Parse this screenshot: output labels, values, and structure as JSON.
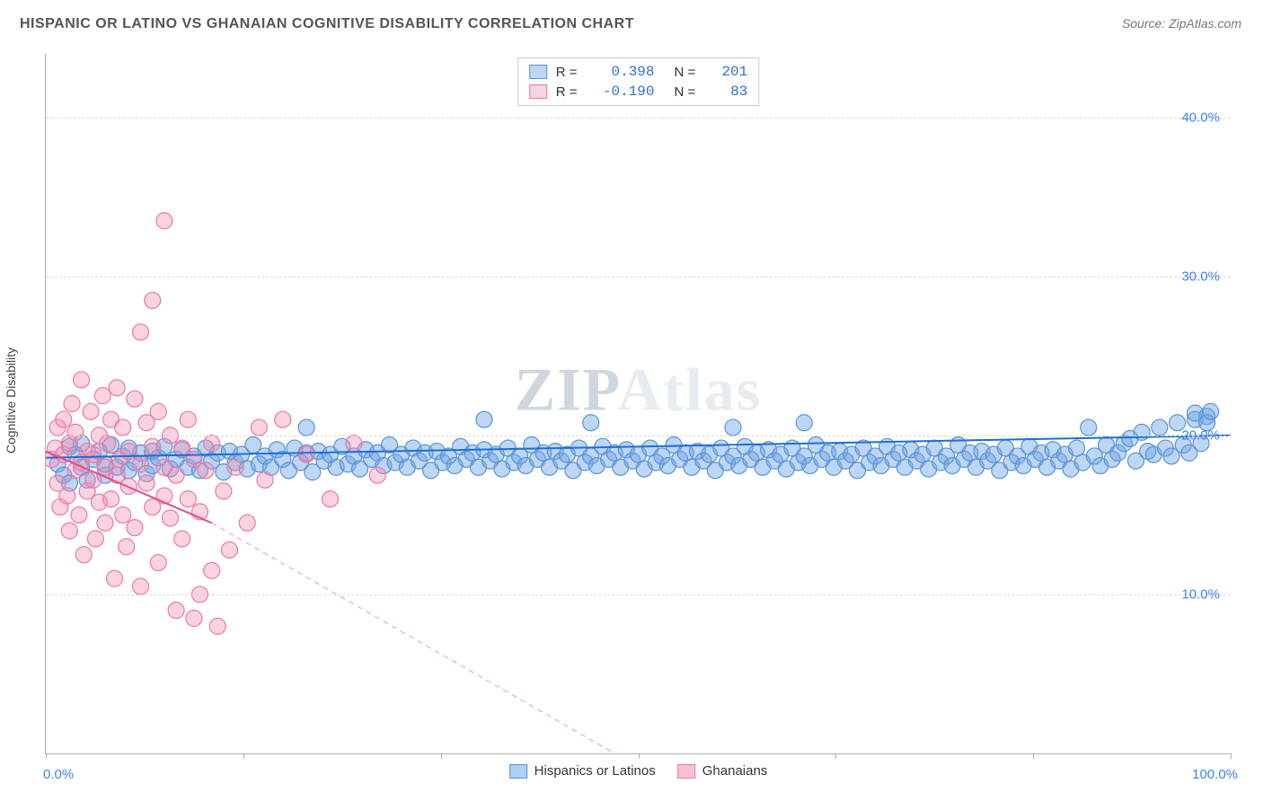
{
  "title": "HISPANIC OR LATINO VS GHANAIAN COGNITIVE DISABILITY CORRELATION CHART",
  "source_label": "Source:",
  "source_name": "ZipAtlas.com",
  "watermark": "ZIPAtlas",
  "chart": {
    "type": "scatter",
    "y_label": "Cognitive Disability",
    "xlim": [
      0,
      100
    ],
    "ylim": [
      0,
      44
    ],
    "y_ticks": [
      10,
      20,
      30,
      40
    ],
    "y_tick_labels": [
      "10.0%",
      "20.0%",
      "30.0%",
      "40.0%"
    ],
    "x_tick_positions": [
      0,
      16.67,
      33.33,
      50,
      66.67,
      83.33,
      100
    ],
    "x_min_label": "0.0%",
    "x_max_label": "100.0%",
    "background_color": "#ffffff",
    "grid_color": "#d9d9d9",
    "axis_color": "#b0b0b0",
    "tick_label_color": "#3b82f6",
    "marker_radius": 9,
    "marker_stroke_width": 1.2,
    "series": [
      {
        "name": "Hispanics or Latinos",
        "fill": "rgba(108,165,231,0.45)",
        "stroke": "#5a93d4",
        "r_value": "0.398",
        "n_value": "201",
        "trend": {
          "x1": 0,
          "y1": 18.6,
          "x2": 100,
          "y2": 20.0,
          "color": "#1d6fd6",
          "width": 2
        },
        "points": [
          [
            1,
            18.2
          ],
          [
            1.5,
            17.5
          ],
          [
            2,
            19.3
          ],
          [
            2,
            17.0
          ],
          [
            2.5,
            18.8
          ],
          [
            3,
            18.0
          ],
          [
            3,
            19.5
          ],
          [
            3.5,
            17.2
          ],
          [
            4,
            18.5
          ],
          [
            4.5,
            19.0
          ],
          [
            5,
            18.2
          ],
          [
            5,
            17.5
          ],
          [
            5.5,
            19.4
          ],
          [
            6,
            18.0
          ],
          [
            6.5,
            18.7
          ],
          [
            7,
            17.8
          ],
          [
            7,
            19.2
          ],
          [
            7.5,
            18.3
          ],
          [
            8,
            18.9
          ],
          [
            8.5,
            17.6
          ],
          [
            9,
            19.0
          ],
          [
            9,
            18.1
          ],
          [
            9.5,
            18.6
          ],
          [
            10,
            19.3
          ],
          [
            10.5,
            17.9
          ],
          [
            11,
            18.5
          ],
          [
            11.5,
            19.1
          ],
          [
            12,
            18.0
          ],
          [
            12.5,
            18.7
          ],
          [
            13,
            17.8
          ],
          [
            13.5,
            19.2
          ],
          [
            14,
            18.4
          ],
          [
            14.5,
            18.9
          ],
          [
            15,
            17.7
          ],
          [
            15.5,
            19.0
          ],
          [
            16,
            18.3
          ],
          [
            16.5,
            18.8
          ],
          [
            17,
            17.9
          ],
          [
            17.5,
            19.4
          ],
          [
            18,
            18.2
          ],
          [
            18.5,
            18.7
          ],
          [
            19,
            18.0
          ],
          [
            19.5,
            19.1
          ],
          [
            20,
            18.5
          ],
          [
            20.5,
            17.8
          ],
          [
            21,
            19.2
          ],
          [
            21.5,
            18.3
          ],
          [
            22,
            18.9
          ],
          [
            22,
            20.5
          ],
          [
            22.5,
            17.7
          ],
          [
            23,
            19.0
          ],
          [
            23.5,
            18.4
          ],
          [
            24,
            18.8
          ],
          [
            24.5,
            18.0
          ],
          [
            25,
            19.3
          ],
          [
            25.5,
            18.2
          ],
          [
            26,
            18.7
          ],
          [
            26.5,
            17.9
          ],
          [
            27,
            19.1
          ],
          [
            27.5,
            18.5
          ],
          [
            28,
            18.9
          ],
          [
            28.5,
            18.1
          ],
          [
            29,
            19.4
          ],
          [
            29.5,
            18.3
          ],
          [
            30,
            18.8
          ],
          [
            30.5,
            18.0
          ],
          [
            31,
            19.2
          ],
          [
            31.5,
            18.4
          ],
          [
            32,
            18.9
          ],
          [
            32.5,
            17.8
          ],
          [
            33,
            19.0
          ],
          [
            33.5,
            18.3
          ],
          [
            34,
            18.7
          ],
          [
            34.5,
            18.1
          ],
          [
            35,
            19.3
          ],
          [
            35.5,
            18.5
          ],
          [
            36,
            18.9
          ],
          [
            36.5,
            18.0
          ],
          [
            37,
            19.1
          ],
          [
            37,
            21.0
          ],
          [
            37.5,
            18.4
          ],
          [
            38,
            18.8
          ],
          [
            38.5,
            17.9
          ],
          [
            39,
            19.2
          ],
          [
            39.5,
            18.3
          ],
          [
            40,
            18.7
          ],
          [
            40.5,
            18.1
          ],
          [
            41,
            19.4
          ],
          [
            41.5,
            18.5
          ],
          [
            42,
            18.9
          ],
          [
            42.5,
            18.0
          ],
          [
            43,
            19.0
          ],
          [
            43.5,
            18.4
          ],
          [
            44,
            18.8
          ],
          [
            44.5,
            17.8
          ],
          [
            45,
            19.2
          ],
          [
            45.5,
            18.3
          ],
          [
            46,
            18.7
          ],
          [
            46,
            20.8
          ],
          [
            46.5,
            18.1
          ],
          [
            47,
            19.3
          ],
          [
            47.5,
            18.5
          ],
          [
            48,
            18.9
          ],
          [
            48.5,
            18.0
          ],
          [
            49,
            19.1
          ],
          [
            49.5,
            18.4
          ],
          [
            50,
            18.8
          ],
          [
            50.5,
            17.9
          ],
          [
            51,
            19.2
          ],
          [
            51.5,
            18.3
          ],
          [
            52,
            18.7
          ],
          [
            52.5,
            18.1
          ],
          [
            53,
            19.4
          ],
          [
            53.5,
            18.5
          ],
          [
            54,
            18.9
          ],
          [
            54.5,
            18.0
          ],
          [
            55,
            19.0
          ],
          [
            55.5,
            18.4
          ],
          [
            56,
            18.8
          ],
          [
            56.5,
            17.8
          ],
          [
            57,
            19.2
          ],
          [
            57.5,
            18.3
          ],
          [
            58,
            18.7
          ],
          [
            58,
            20.5
          ],
          [
            58.5,
            18.1
          ],
          [
            59,
            19.3
          ],
          [
            59.5,
            18.5
          ],
          [
            60,
            18.9
          ],
          [
            60.5,
            18.0
          ],
          [
            61,
            19.1
          ],
          [
            61.5,
            18.4
          ],
          [
            62,
            18.8
          ],
          [
            62.5,
            17.9
          ],
          [
            63,
            19.2
          ],
          [
            63.5,
            18.3
          ],
          [
            64,
            18.7
          ],
          [
            64,
            20.8
          ],
          [
            64.5,
            18.1
          ],
          [
            65,
            19.4
          ],
          [
            65.5,
            18.5
          ],
          [
            66,
            18.9
          ],
          [
            66.5,
            18.0
          ],
          [
            67,
            19.0
          ],
          [
            67.5,
            18.4
          ],
          [
            68,
            18.8
          ],
          [
            68.5,
            17.8
          ],
          [
            69,
            19.2
          ],
          [
            69.5,
            18.3
          ],
          [
            70,
            18.7
          ],
          [
            70.5,
            18.1
          ],
          [
            71,
            19.3
          ],
          [
            71.5,
            18.5
          ],
          [
            72,
            18.9
          ],
          [
            72.5,
            18.0
          ],
          [
            73,
            19.1
          ],
          [
            73.5,
            18.4
          ],
          [
            74,
            18.8
          ],
          [
            74.5,
            17.9
          ],
          [
            75,
            19.2
          ],
          [
            75.5,
            18.3
          ],
          [
            76,
            18.7
          ],
          [
            76.5,
            18.1
          ],
          [
            77,
            19.4
          ],
          [
            77.5,
            18.5
          ],
          [
            78,
            18.9
          ],
          [
            78.5,
            18.0
          ],
          [
            79,
            19.0
          ],
          [
            79.5,
            18.4
          ],
          [
            80,
            18.8
          ],
          [
            80.5,
            17.8
          ],
          [
            81,
            19.2
          ],
          [
            81.5,
            18.3
          ],
          [
            82,
            18.7
          ],
          [
            82.5,
            18.1
          ],
          [
            83,
            19.3
          ],
          [
            83.5,
            18.5
          ],
          [
            84,
            18.9
          ],
          [
            84.5,
            18.0
          ],
          [
            85,
            19.1
          ],
          [
            85.5,
            18.4
          ],
          [
            86,
            18.8
          ],
          [
            86.5,
            17.9
          ],
          [
            87,
            19.2
          ],
          [
            87.5,
            18.3
          ],
          [
            88,
            20.5
          ],
          [
            88.5,
            18.7
          ],
          [
            89,
            18.1
          ],
          [
            89.5,
            19.4
          ],
          [
            90,
            18.5
          ],
          [
            90.5,
            18.9
          ],
          [
            91,
            19.5
          ],
          [
            91.5,
            19.8
          ],
          [
            92,
            18.4
          ],
          [
            92.5,
            20.2
          ],
          [
            93,
            19.0
          ],
          [
            93.5,
            18.8
          ],
          [
            94,
            20.5
          ],
          [
            94.5,
            19.2
          ],
          [
            95,
            18.7
          ],
          [
            95.5,
            20.8
          ],
          [
            96,
            19.4
          ],
          [
            96.5,
            18.9
          ],
          [
            97,
            21.0
          ],
          [
            97,
            21.4
          ],
          [
            97.5,
            19.5
          ],
          [
            98,
            21.2
          ],
          [
            98,
            20.8
          ],
          [
            98.3,
            21.5
          ]
        ]
      },
      {
        "name": "Ghanaians",
        "fill": "rgba(244,143,177,0.40)",
        "stroke": "#e87aa5",
        "r_value": "-0.190",
        "n_value": "83",
        "trend_solid": {
          "x1": 0,
          "y1": 19.0,
          "x2": 14,
          "y2": 14.5,
          "color": "#e64b8e",
          "width": 2
        },
        "trend_dashed": {
          "x1": 14,
          "y1": 14.5,
          "x2": 48,
          "y2": 0,
          "color": "#f0a7c3",
          "width": 1.2,
          "dash": "6 5"
        },
        "points": [
          [
            0.5,
            18.5
          ],
          [
            0.8,
            19.2
          ],
          [
            1,
            17.0
          ],
          [
            1,
            20.5
          ],
          [
            1.2,
            15.5
          ],
          [
            1.5,
            18.8
          ],
          [
            1.5,
            21.0
          ],
          [
            1.8,
            16.2
          ],
          [
            2,
            19.5
          ],
          [
            2,
            14.0
          ],
          [
            2.2,
            22.0
          ],
          [
            2.5,
            17.8
          ],
          [
            2.5,
            20.2
          ],
          [
            2.8,
            15.0
          ],
          [
            3,
            18.3
          ],
          [
            3,
            23.5
          ],
          [
            3.2,
            12.5
          ],
          [
            3.5,
            19.0
          ],
          [
            3.5,
            16.5
          ],
          [
            3.8,
            21.5
          ],
          [
            4,
            17.2
          ],
          [
            4,
            18.8
          ],
          [
            4.2,
            13.5
          ],
          [
            4.5,
            20.0
          ],
          [
            4.5,
            15.8
          ],
          [
            4.8,
            22.5
          ],
          [
            5,
            18.0
          ],
          [
            5,
            14.5
          ],
          [
            5.2,
            19.5
          ],
          [
            5.5,
            16.0
          ],
          [
            5.5,
            21.0
          ],
          [
            5.8,
            11.0
          ],
          [
            6,
            17.5
          ],
          [
            6,
            23.0
          ],
          [
            6.2,
            18.5
          ],
          [
            6.5,
            15.0
          ],
          [
            6.5,
            20.5
          ],
          [
            6.8,
            13.0
          ],
          [
            7,
            19.0
          ],
          [
            7,
            16.8
          ],
          [
            7.5,
            22.3
          ],
          [
            7.5,
            14.2
          ],
          [
            8,
            18.2
          ],
          [
            8,
            10.5
          ],
          [
            8,
            26.5
          ],
          [
            8.5,
            17.0
          ],
          [
            8.5,
            20.8
          ],
          [
            9,
            15.5
          ],
          [
            9,
            19.3
          ],
          [
            9,
            28.5
          ],
          [
            9.5,
            12.0
          ],
          [
            9.5,
            21.5
          ],
          [
            10,
            18.0
          ],
          [
            10,
            16.2
          ],
          [
            10,
            33.5
          ],
          [
            10.5,
            14.8
          ],
          [
            10.5,
            20.0
          ],
          [
            11,
            17.5
          ],
          [
            11,
            9.0
          ],
          [
            11.5,
            19.2
          ],
          [
            11.5,
            13.5
          ],
          [
            12,
            16.0
          ],
          [
            12,
            21.0
          ],
          [
            12.5,
            8.5
          ],
          [
            12.5,
            18.5
          ],
          [
            13,
            15.2
          ],
          [
            13,
            10.0
          ],
          [
            13.5,
            17.8
          ],
          [
            14,
            11.5
          ],
          [
            14,
            19.5
          ],
          [
            14.5,
            8.0
          ],
          [
            15,
            16.5
          ],
          [
            15.5,
            12.8
          ],
          [
            16,
            18.0
          ],
          [
            17,
            14.5
          ],
          [
            18,
            20.5
          ],
          [
            18.5,
            17.2
          ],
          [
            20,
            21.0
          ],
          [
            22,
            18.8
          ],
          [
            24,
            16.0
          ],
          [
            26,
            19.5
          ],
          [
            28,
            17.5
          ]
        ]
      }
    ],
    "legend_bottom": [
      {
        "label": "Hispanics or Latinos",
        "fill": "rgba(108,165,231,0.55)",
        "stroke": "#5a93d4"
      },
      {
        "label": "Ghanaians",
        "fill": "rgba(244,143,177,0.55)",
        "stroke": "#e87aa5"
      }
    ]
  }
}
